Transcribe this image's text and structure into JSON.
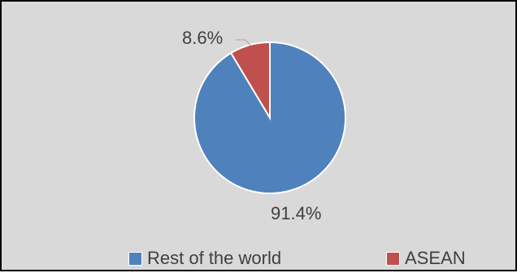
{
  "chart_data": {
    "type": "pie",
    "title": "",
    "slices": [
      {
        "label": "Rest of the world",
        "value": 91.4,
        "data_label": "91.4%",
        "color": "#4f81bd"
      },
      {
        "label": "ASEAN",
        "value": 8.6,
        "data_label": "8.6%",
        "color": "#c0504d"
      }
    ],
    "legend": {
      "placement": "bottom",
      "items": [
        {
          "label": "Rest of the world",
          "color": "#4f81bd"
        },
        {
          "label": "ASEAN",
          "color": "#c0504d"
        }
      ]
    },
    "background_color": "#d9d9d9",
    "border_color": "#000000",
    "slice_border_color": "#ffffff",
    "label_color": "#404040"
  }
}
